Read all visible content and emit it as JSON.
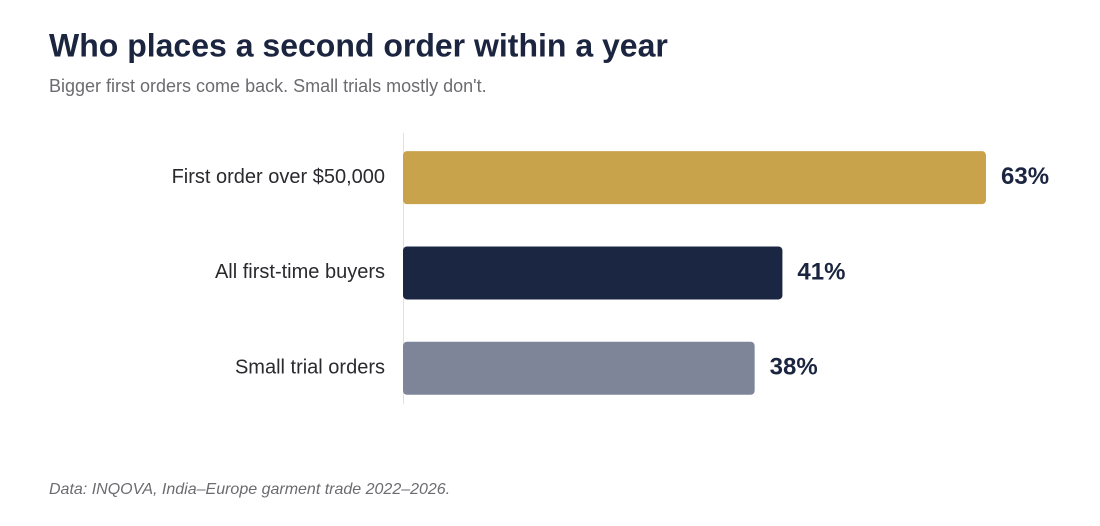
{
  "chart_data": {
    "type": "hbar",
    "title": "Who places a second order within a year",
    "subtitle": "Bigger first orders come back. Small trials mostly don't.",
    "categories": [
      "First order over $50,000",
      "All first-time buyers",
      "Small trial orders"
    ],
    "values": [
      63,
      41,
      38
    ],
    "value_labels": [
      "63%",
      "41%",
      "38%"
    ],
    "colors": [
      "#c9a24c",
      "#1b2742",
      "#7e8599"
    ],
    "source": "Data: INQOVA, India–Europe garment trade 2022–2026."
  }
}
